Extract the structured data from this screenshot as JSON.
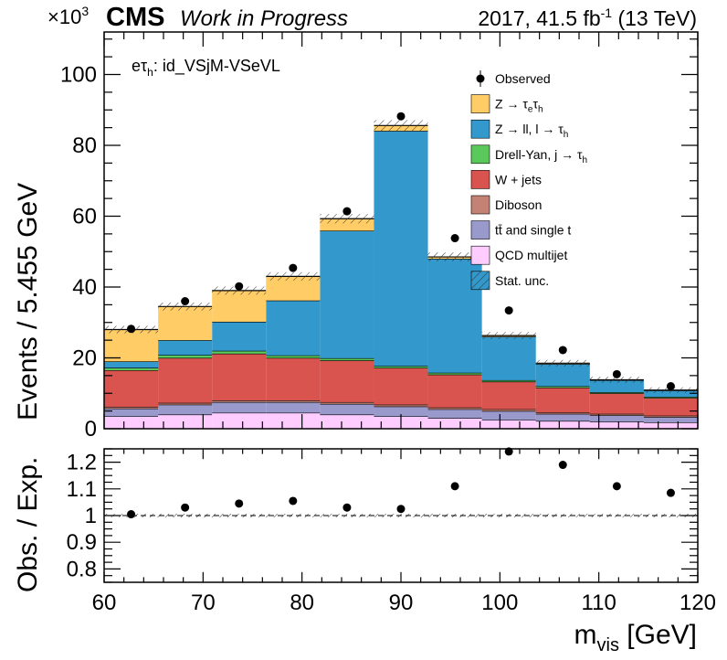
{
  "header": {
    "exponent_prefix": "×10",
    "exponent_power": "3",
    "cms": "CMS",
    "status": "Work in Progress",
    "lumi_pre": "2017, 41.5 fb",
    "lumi_sup": "-1",
    "lumi_post": " (13 TeV)"
  },
  "channel": {
    "main": "eτ",
    "sub": "h",
    "rest": ": id_VSjM-VSeVL"
  },
  "chart_data": {
    "type": "bar",
    "stacked": true,
    "xlabel_main": "m",
    "xlabel_sub": "vis",
    "xlabel_unit": " [GeV]",
    "ylabel": "Events / 5.455 GeV",
    "ratio_ylabel": "Obs. / Exp.",
    "xlim": [
      60,
      120
    ],
    "ylim": [
      0,
      112
    ],
    "ylim_ratio": [
      0.75,
      1.25
    ],
    "y_scale_note": "×10^3",
    "bin_edges": [
      60,
      65.455,
      70.909,
      76.364,
      81.818,
      87.273,
      92.727,
      98.182,
      103.636,
      109.091,
      114.545,
      120
    ],
    "x_ticks": [
      60,
      70,
      80,
      90,
      100,
      110,
      120
    ],
    "y_ticks": [
      0,
      20,
      40,
      60,
      80,
      100
    ],
    "ratio_ticks": [
      0.8,
      0.9,
      1,
      1.1,
      1.2
    ],
    "series": [
      {
        "name": "QCD multijet",
        "color": "#ffccff",
        "values": [
          3.5,
          4.0,
          4.5,
          4.5,
          4.0,
          3.5,
          3.0,
          2.5,
          2.2,
          2.0,
          1.8
        ]
      },
      {
        "name": "tt̄ and single t",
        "color": "#9999cc",
        "values": [
          2.2,
          2.8,
          3.0,
          3.0,
          3.0,
          2.8,
          2.5,
          2.5,
          2.0,
          1.8,
          1.5
        ]
      },
      {
        "name": "Diboson",
        "color": "#c48274",
        "values": [
          0.5,
          0.5,
          0.5,
          0.5,
          0.5,
          0.5,
          0.5,
          0.5,
          0.4,
          0.4,
          0.4
        ]
      },
      {
        "name": "W + jets",
        "color": "#d9534f",
        "values": [
          10.3,
          12.7,
          13.2,
          12.0,
          11.8,
          10.4,
          9.3,
          7.8,
          7.0,
          5.8,
          5.0
        ]
      },
      {
        "name": "Drell-Yan, j → τh",
        "color": "#5bc85b",
        "values": [
          0.7,
          0.8,
          0.8,
          0.7,
          0.6,
          0.5,
          0.5,
          0.4,
          0.4,
          0.3,
          0.3
        ]
      },
      {
        "name": "Z → ll, l → τh",
        "color": "#3399cc",
        "values": [
          1.8,
          4.2,
          8.2,
          15.5,
          36.0,
          66.4,
          32.2,
          12.3,
          6.3,
          3.4,
          1.8
        ]
      },
      {
        "name": "Z → τeτh",
        "color": "#ffcc66",
        "values": [
          9.0,
          9.5,
          8.8,
          6.8,
          3.4,
          1.5,
          0.5,
          0.3,
          0.2,
          0.1,
          0.1
        ]
      }
    ],
    "observed": {
      "name": "Observed",
      "values": [
        28.2,
        36.0,
        40.2,
        45.4,
        61.4,
        88.2,
        53.8,
        33.4,
        22.2,
        15.4,
        12.0
      ]
    },
    "ratio": [
      1.005,
      1.03,
      1.045,
      1.055,
      1.03,
      1.025,
      1.11,
      1.24,
      1.19,
      1.11,
      1.085
    ],
    "legend": [
      {
        "label_main": "Observed",
        "label_sub": "",
        "label_tail": "",
        "kind": "point"
      },
      {
        "label_main": "Z → τ",
        "label_sub": "e",
        "label_tail": "τ",
        "label_sub2": "h",
        "kind": "box",
        "color": "#ffcc66"
      },
      {
        "label_main": "Z → ll, l → τ",
        "label_sub": "h",
        "label_tail": "",
        "kind": "box",
        "color": "#3399cc"
      },
      {
        "label_main": "Drell-Yan, j → τ",
        "label_sub": "h",
        "label_tail": "",
        "kind": "box",
        "color": "#5bc85b"
      },
      {
        "label_main": "W + jets",
        "label_sub": "",
        "label_tail": "",
        "kind": "box",
        "color": "#d9534f"
      },
      {
        "label_main": "Diboson",
        "label_sub": "",
        "label_tail": "",
        "kind": "box",
        "color": "#c48274"
      },
      {
        "label_main": "tt̄ and single t",
        "label_sub": "",
        "label_tail": "",
        "kind": "box",
        "color": "#9999cc"
      },
      {
        "label_main": "QCD multijet",
        "label_sub": "",
        "label_tail": "",
        "kind": "box",
        "color": "#ffccff"
      },
      {
        "label_main": "Stat. unc.",
        "label_sub": "",
        "label_tail": "",
        "kind": "hatch",
        "color": "#3399cc"
      }
    ]
  }
}
